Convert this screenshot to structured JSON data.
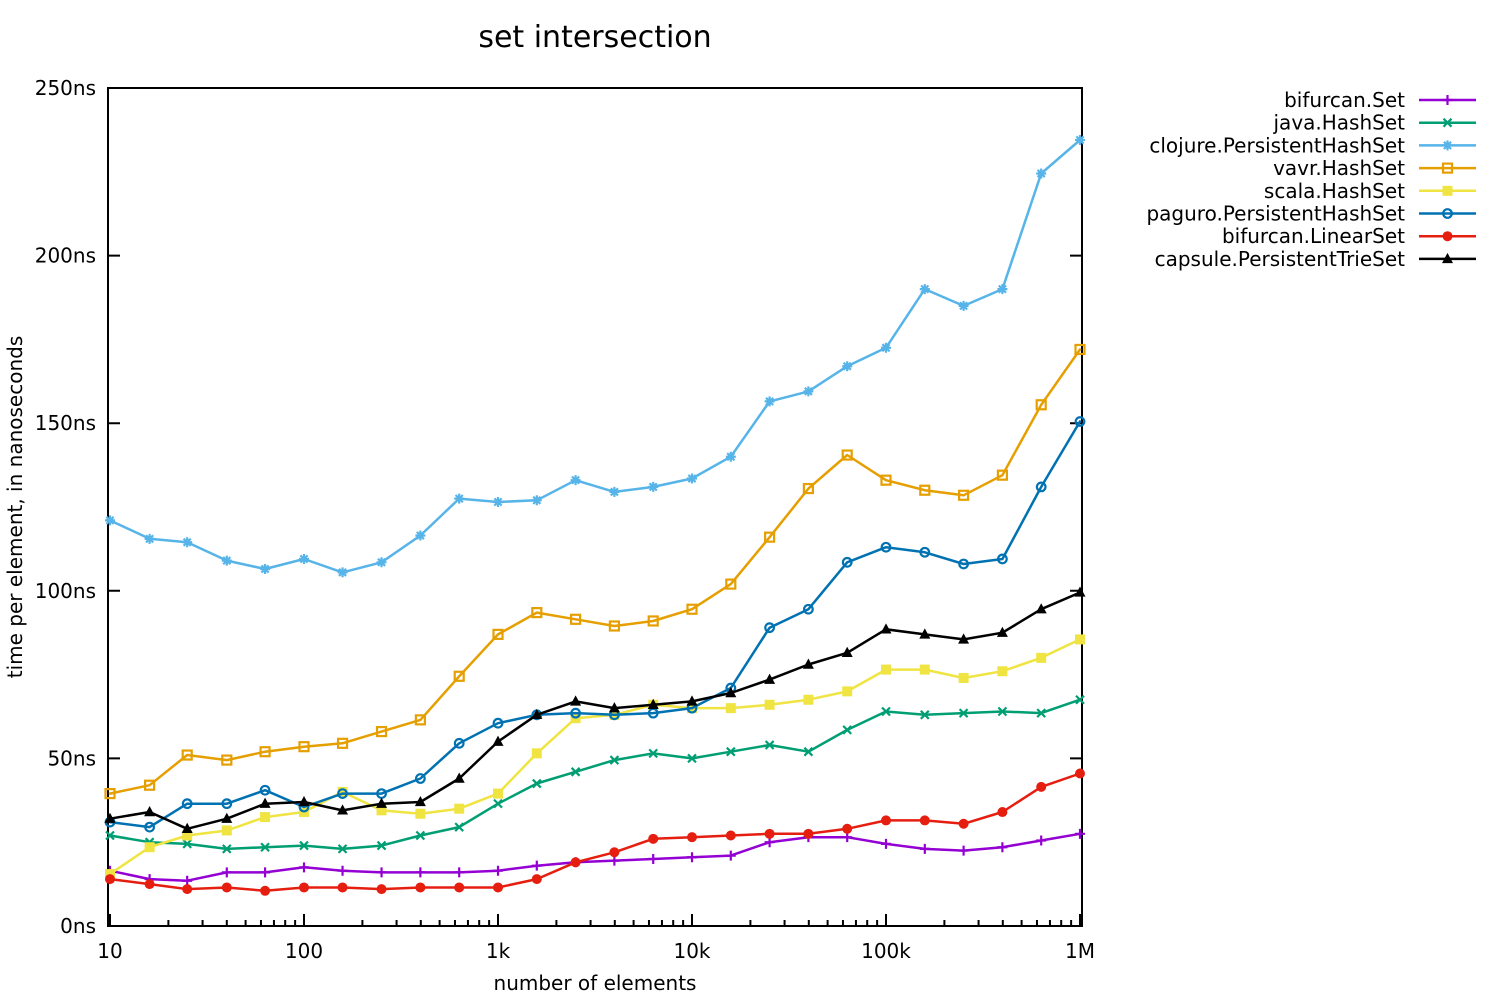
{
  "chart_data": {
    "type": "line",
    "title": "set intersection",
    "xlabel": "number of elements",
    "ylabel": "time per element, in nanoseconds",
    "x_scale": "log",
    "xlim": [
      10,
      1000000
    ],
    "ylim": [
      0,
      250
    ],
    "grid": false,
    "legend_position": "outside-top-right",
    "background_color": "#ffffff",
    "axis_color": "#000000",
    "y_ticks": [
      {
        "v": 0,
        "label": "0ns"
      },
      {
        "v": 50,
        "label": "50ns"
      },
      {
        "v": 100,
        "label": "100ns"
      },
      {
        "v": 150,
        "label": "150ns"
      },
      {
        "v": 200,
        "label": "200ns"
      },
      {
        "v": 250,
        "label": "250ns"
      }
    ],
    "x_ticks": [
      {
        "v": 10,
        "label": "10"
      },
      {
        "v": 100,
        "label": "100"
      },
      {
        "v": 1000,
        "label": "1k"
      },
      {
        "v": 10000,
        "label": "10k"
      },
      {
        "v": 100000,
        "label": "100k"
      },
      {
        "v": 1000000,
        "label": "1M"
      }
    ],
    "x": [
      10,
      16,
      25,
      40,
      63,
      100,
      158,
      251,
      398,
      631,
      1000,
      1585,
      2512,
      3981,
      6310,
      10000,
      15849,
      25119,
      39811,
      63096,
      100000,
      158489,
      251189,
      398107,
      630957,
      1000000
    ],
    "series": [
      {
        "name": "bifurcan.Set",
        "color": "#9400d3",
        "marker": "plus",
        "values": [
          16.5,
          14,
          13.5,
          16,
          16,
          17.5,
          16.5,
          16,
          16,
          16,
          16.5,
          18,
          19,
          19.5,
          20,
          20.5,
          21,
          25,
          26.5,
          26.5,
          24.5,
          23,
          22.5,
          23.5,
          25.5,
          27.5
        ]
      },
      {
        "name": "java.HashSet",
        "color": "#009e73",
        "marker": "cross",
        "values": [
          27,
          25,
          24.5,
          23,
          23.5,
          24,
          23,
          24,
          27,
          29.5,
          36.5,
          42.5,
          46,
          49.5,
          51.5,
          50,
          52,
          54,
          52,
          58.5,
          64,
          63,
          63.5,
          64,
          63.5,
          67.5
        ]
      },
      {
        "name": "clojure.PersistentHashSet",
        "color": "#56b4e9",
        "marker": "asterisk",
        "values": [
          121,
          115.5,
          114.5,
          109,
          106.5,
          109.5,
          105.5,
          108.5,
          116.5,
          127.5,
          126.5,
          127,
          133,
          129.5,
          131,
          133.5,
          140,
          156.5,
          159.5,
          167,
          172.5,
          190,
          185,
          190,
          224.5,
          234.5
        ]
      },
      {
        "name": "vavr.HashSet",
        "color": "#e69f00",
        "marker": "square-open",
        "values": [
          39.5,
          42,
          51,
          49.5,
          52,
          53.5,
          54.5,
          58,
          61.5,
          74.5,
          87,
          93.5,
          91.5,
          89.5,
          91,
          94.5,
          102,
          116,
          130.5,
          140.5,
          133,
          130,
          128.5,
          134.5,
          155.5,
          172
        ]
      },
      {
        "name": "scala.HashSet",
        "color": "#f0e442",
        "marker": "square-filled",
        "values": [
          15.5,
          23.5,
          27,
          28.5,
          32.5,
          34,
          40,
          34.5,
          33.5,
          35,
          39.5,
          51.5,
          62,
          63,
          66,
          65,
          65,
          66,
          67.5,
          70,
          76.5,
          76.5,
          74,
          76,
          80,
          85.5
        ]
      },
      {
        "name": "paguro.PersistentHashSet",
        "color": "#0072b2",
        "marker": "circle-open",
        "values": [
          31,
          29.5,
          36.5,
          36.5,
          40.5,
          35.5,
          39.5,
          39.5,
          44,
          54.5,
          60.5,
          63,
          63.5,
          63,
          63.5,
          65,
          71,
          89,
          94.5,
          108.5,
          113,
          111.5,
          108,
          109.5,
          131,
          150.5
        ]
      },
      {
        "name": "bifurcan.LinearSet",
        "color": "#e51e10",
        "marker": "circle-filled",
        "values": [
          14,
          12.5,
          11,
          11.5,
          10.5,
          11.5,
          11.5,
          11,
          11.5,
          11.5,
          11.5,
          14,
          19,
          22,
          26,
          26.5,
          27,
          27.5,
          27.5,
          29,
          31.5,
          31.5,
          30.5,
          34,
          41.5,
          45.5
        ]
      },
      {
        "name": "capsule.PersistentTrieSet",
        "color": "#000000",
        "marker": "triangle-filled",
        "values": [
          32,
          34,
          29,
          32,
          36.5,
          37,
          34.5,
          36.5,
          37,
          44,
          55,
          63,
          67,
          65,
          66,
          67,
          69.5,
          73.5,
          78,
          81.5,
          88.5,
          87,
          85.5,
          87.5,
          94.5,
          99.5
        ]
      }
    ]
  }
}
